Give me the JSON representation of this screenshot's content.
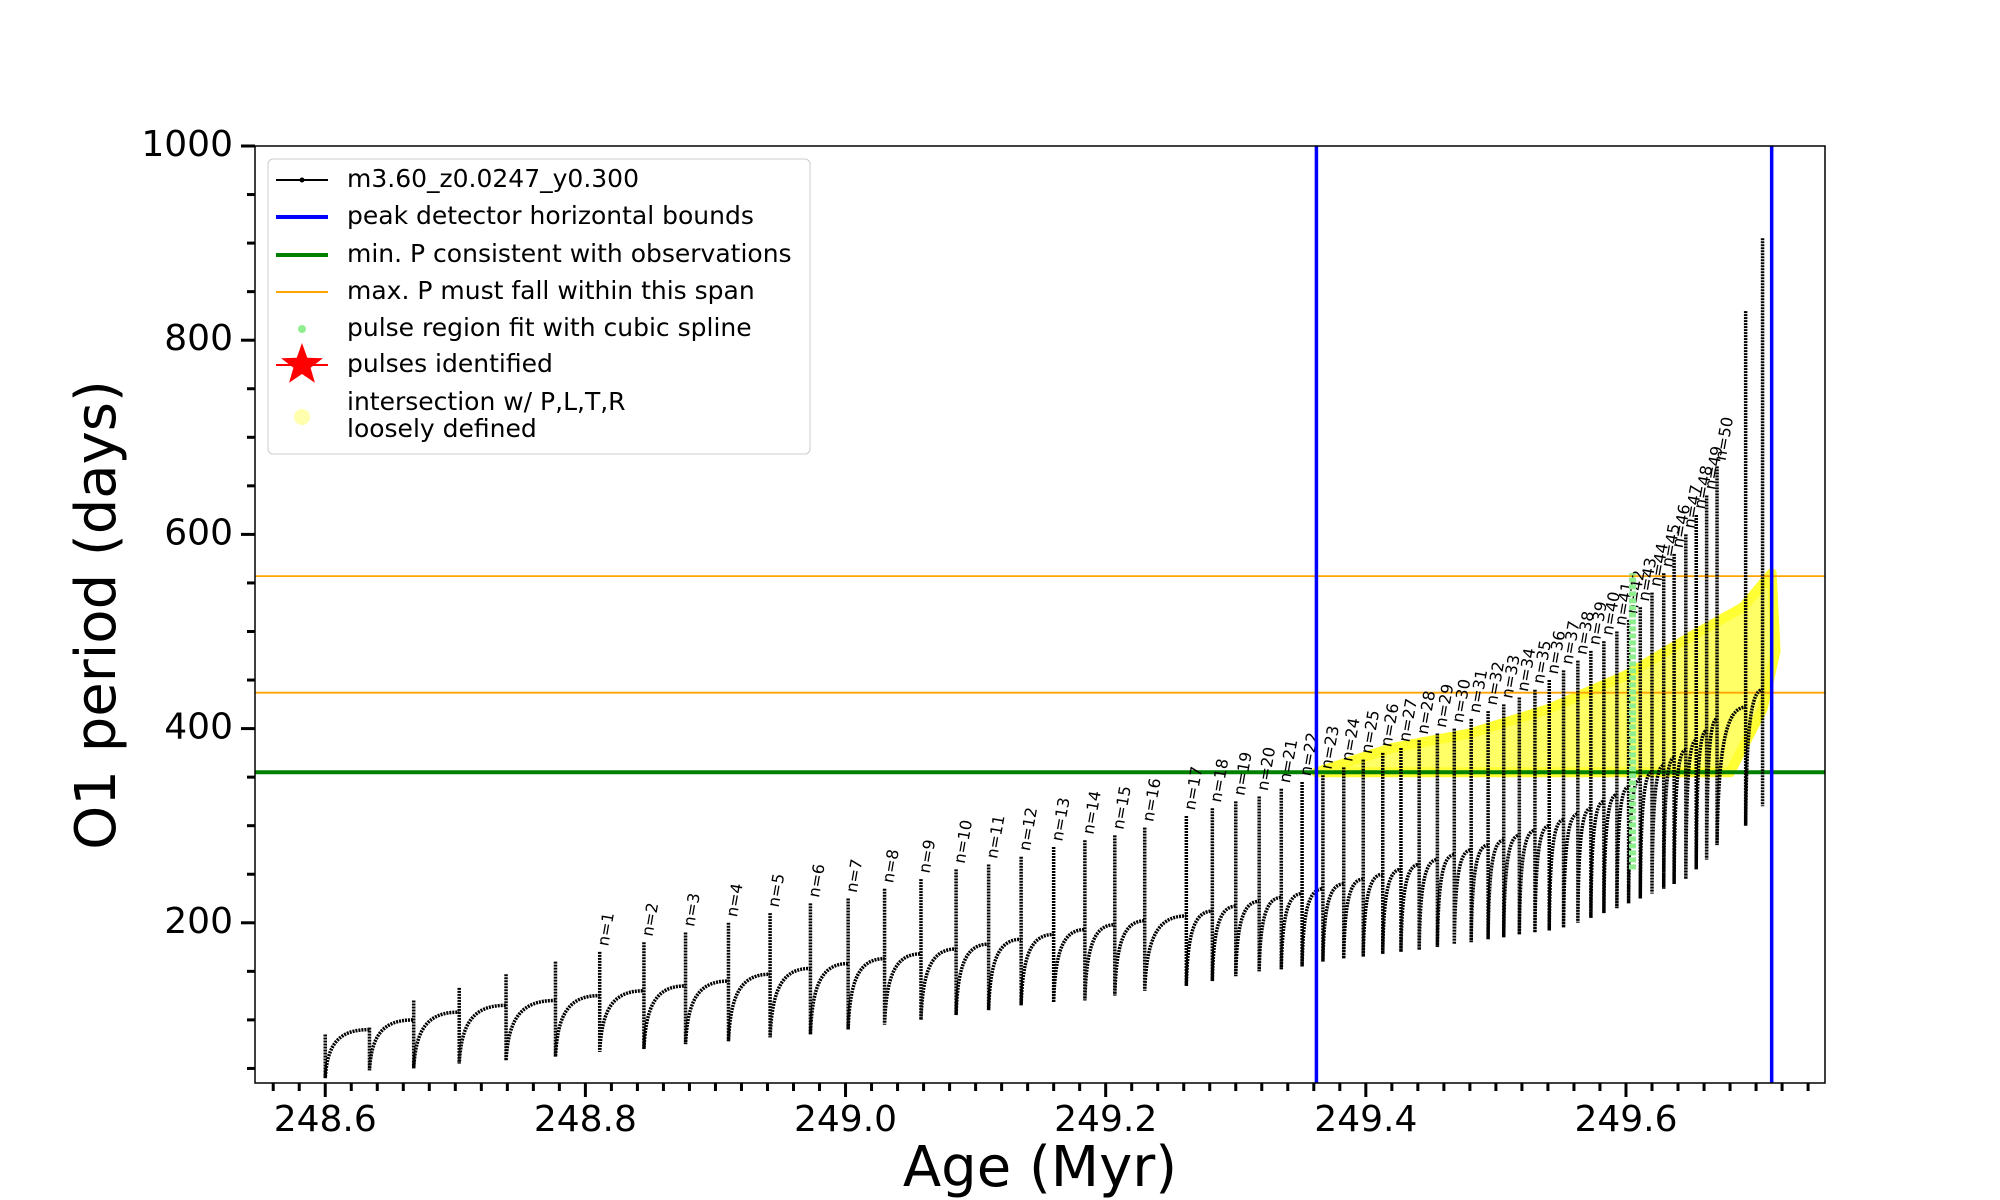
{
  "chart_data": {
    "type": "line",
    "xlabel": "Age (Myr)",
    "ylabel": "O1 period (days)",
    "xlim": [
      248.546,
      249.753
    ],
    "ylim": [
      35,
      1000
    ],
    "xticks": [
      248.6,
      248.8,
      {
        "value": 249,
        "label": "249.0"
      },
      249.2,
      249.4,
      249.6
    ],
    "yticks": [
      200,
      400,
      600,
      800,
      1000
    ],
    "xminorticks": [
      248.56,
      248.58,
      248.62,
      248.64,
      248.66,
      248.68,
      248.7,
      248.72,
      248.74,
      248.76,
      248.78,
      248.82,
      248.84,
      248.86,
      248.88,
      248.9,
      248.92,
      248.94,
      248.96,
      248.98,
      249.02,
      249.04,
      249.06,
      249.08,
      249.1,
      249.12,
      249.14,
      249.16,
      249.18,
      249.22,
      249.24,
      249.26,
      249.28,
      249.3,
      249.32,
      249.34,
      249.36,
      249.38,
      249.42,
      249.44,
      249.46,
      249.48,
      249.5,
      249.52,
      249.54,
      249.56,
      249.58,
      249.62,
      249.64,
      249.66,
      249.68,
      249.7,
      249.72,
      249.74
    ],
    "yminorticks": [
      50,
      100,
      150,
      250,
      300,
      350,
      450,
      500,
      550,
      650,
      700,
      750,
      850,
      900,
      950
    ],
    "legend": "upper left",
    "series": [
      {
        "name": "m3.60_z0.0247_y0.300",
        "color": "#000000",
        "ages": [
          248.6,
          248.634,
          248.668,
          248.703,
          248.739,
          248.777,
          248.811,
          248.845,
          248.877,
          248.91,
          248.942,
          248.973,
          249.002,
          249.03,
          249.058,
          249.085,
          249.11,
          249.135,
          249.16,
          249.184,
          249.207,
          249.23,
          249.262,
          249.282,
          249.3,
          249.318,
          249.335,
          249.351,
          249.367,
          249.383,
          249.398,
          249.413,
          249.427,
          249.441,
          249.455,
          249.468,
          249.481,
          249.494,
          249.506,
          249.518,
          249.53,
          249.541,
          249.552,
          249.563,
          249.573,
          249.583,
          249.593,
          249.602,
          249.611,
          249.62,
          249.629,
          249.637,
          249.646,
          249.654,
          249.662,
          249.67,
          249.692,
          249.705
        ],
        "peaks": [
          85,
          92,
          120,
          133,
          147,
          160,
          170,
          180,
          190,
          200,
          210,
          220,
          225,
          235,
          245,
          255,
          260,
          268,
          278,
          285,
          290,
          298,
          310,
          318,
          325,
          330,
          338,
          345,
          352,
          360,
          368,
          375,
          380,
          388,
          395,
          400,
          410,
          418,
          425,
          432,
          440,
          450,
          460,
          470,
          480,
          490,
          500,
          512,
          525,
          540,
          560,
          580,
          600,
          620,
          640,
          670,
          830,
          905
        ],
        "troughs": [
          40,
          48,
          50,
          55,
          58,
          62,
          67,
          70,
          75,
          78,
          82,
          85,
          90,
          95,
          100,
          105,
          110,
          115,
          118,
          120,
          125,
          130,
          135,
          140,
          145,
          150,
          152,
          155,
          160,
          163,
          165,
          168,
          170,
          172,
          175,
          178,
          180,
          183,
          185,
          188,
          190,
          192,
          195,
          200,
          205,
          210,
          215,
          220,
          225,
          230,
          235,
          240,
          245,
          255,
          265,
          280,
          300,
          320
        ],
        "plateaus": [
          90,
          100,
          108,
          115,
          120,
          125,
          130,
          135,
          140,
          147,
          153,
          158,
          163,
          168,
          173,
          178,
          183,
          188,
          193,
          198,
          202,
          207,
          212,
          217,
          222,
          226,
          230,
          235,
          240,
          245,
          250,
          255,
          260,
          265,
          270,
          275,
          280,
          285,
          290,
          295,
          300,
          306,
          312,
          318,
          325,
          332,
          340,
          348,
          355,
          362,
          370,
          378,
          388,
          398,
          410,
          422,
          440,
          null
        ],
        "labels": [
          null,
          null,
          null,
          null,
          null,
          null,
          "n=1",
          "n=2",
          "n=3",
          "n=4",
          "n=5",
          "n=6",
          "n=7",
          "n=8",
          "n=9",
          "n=10",
          "n=11",
          "n=12",
          "n=13",
          "n=14",
          "n=15",
          "n=16",
          "n=17",
          "n=18",
          "n=19",
          "n=20",
          "n=21",
          "n=22",
          "n=23",
          "n=24",
          "n=25",
          "n=26",
          "n=27",
          "n=28",
          "n=29",
          "n=30",
          "n=31",
          "n=32",
          "n=33",
          "n=34",
          "n=35",
          "n=36",
          "n=37",
          "n=38",
          "n=39",
          "n=40",
          "n=41",
          "n=42",
          "n=43",
          "n=44",
          "n=45",
          "n=46",
          "n=47",
          "n=48",
          "n=49",
          "n=50",
          null,
          null
        ]
      }
    ],
    "vlines": {
      "name": "peak detector horizontal bounds",
      "color": "#0000ff",
      "values": [
        249.362,
        249.712
      ]
    },
    "min_line": {
      "name": "min. P consistent with observations",
      "color": "#008000",
      "value": 355
    },
    "max_span": {
      "name": "max. P must fall within this span",
      "color": "#ffa500",
      "values": [
        437,
        557
      ]
    },
    "spline": {
      "name": "pulse region fit with cubic spline",
      "color": "#90ee90",
      "x": [
        249.605,
        249.605
      ],
      "y": [
        255,
        560
      ]
    },
    "pulses_identified": {
      "name": "pulses identified",
      "color": "#ff0000"
    },
    "intersection": {
      "name": [
        "intersection w/ P,L,T,R",
        "loosely defined"
      ],
      "color": "#ffff33",
      "x": [
        249.362,
        249.42,
        249.48,
        249.54,
        249.6,
        249.65,
        249.69,
        249.712,
        249.715,
        249.705,
        249.68,
        249.59,
        249.362
      ],
      "y": [
        355,
        380,
        395,
        420,
        455,
        495,
        525,
        560,
        480,
        420,
        355,
        355,
        355
      ]
    }
  }
}
